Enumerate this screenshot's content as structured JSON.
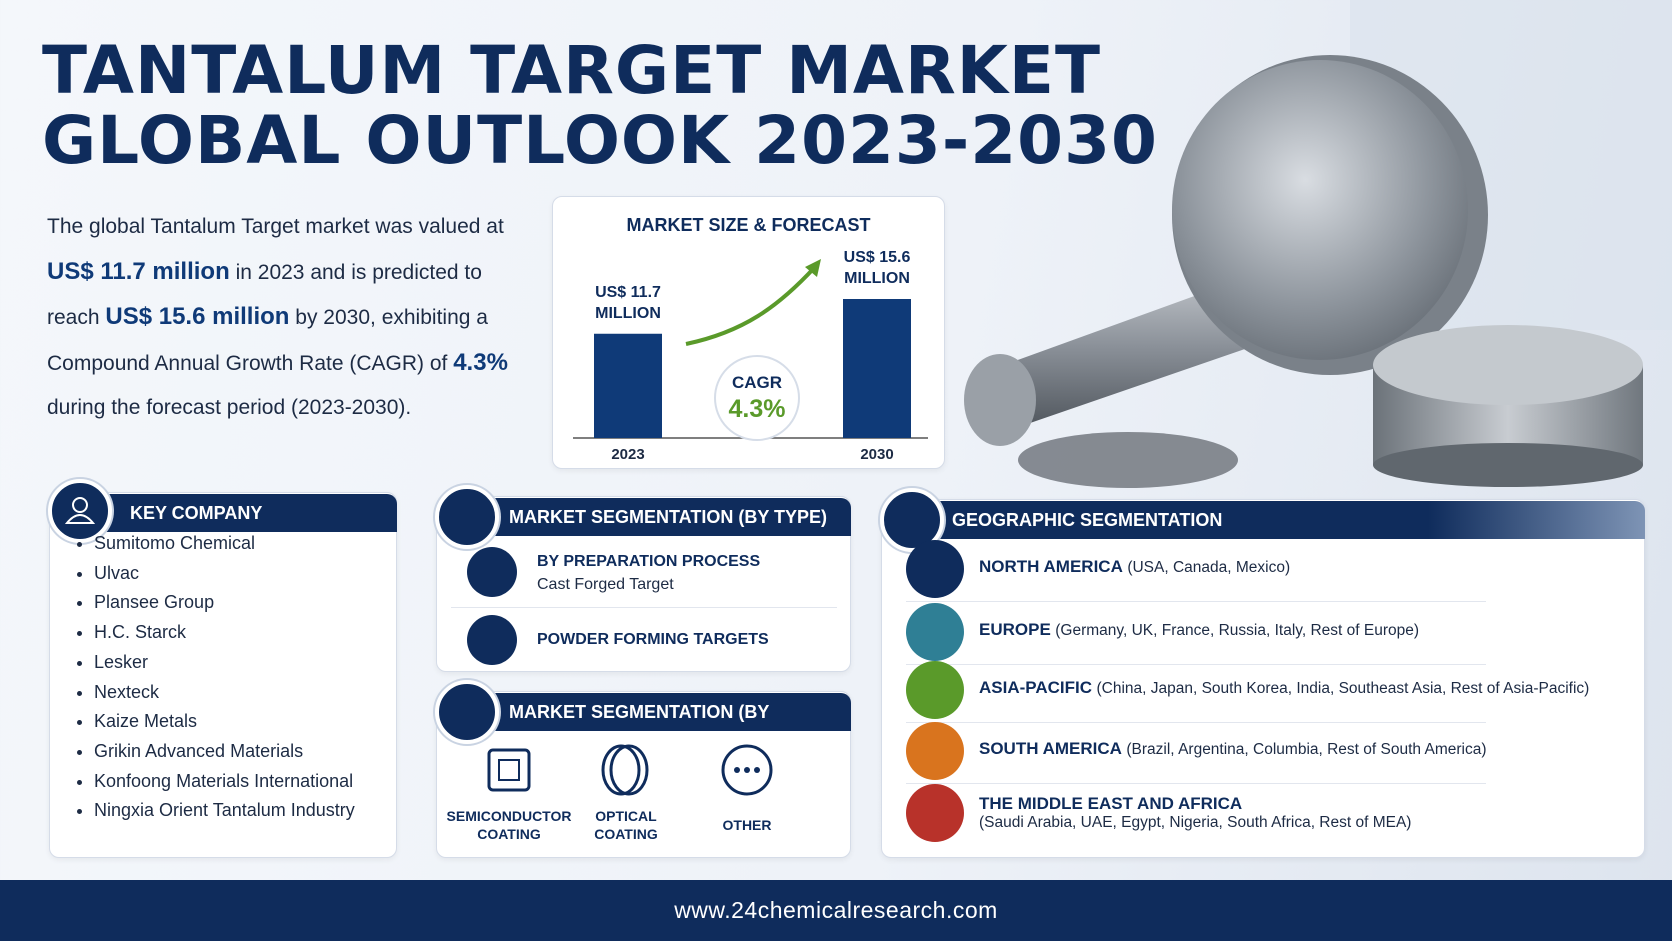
{
  "header": {
    "title_line1": "TANTALUM TARGET MARKET",
    "title_line2": "GLOBAL OUTLOOK 2023-2030"
  },
  "intro": [
    "The global Tantalum Target market was valued at",
    "US$ 11.7 million",
    "in 2023 and is predicted to reach",
    "US$ 15.6 million",
    "by 2030, exhibiting a",
    "Compound Annual Growth Rate (CAGR) of",
    "4.3%",
    "during the forecast period (2023-2030)."
  ],
  "chart_data": {
    "type": "bar",
    "title": "MARKET SIZE & FORECAST",
    "categories": [
      "2023",
      "2030"
    ],
    "values": [
      11.7,
      15.6
    ],
    "value_labels": [
      "US$ 11.7 MILLION",
      "US$ 15.6 MILLION"
    ],
    "color": "#0f3a78",
    "annotations": [
      "CAGR",
      "4.3%"
    ]
  },
  "key_company": {
    "title": "KEY COMPANY",
    "items": [
      "Sumitomo Chemical",
      "Ulvac",
      "Plansee Group",
      "H.C. Starck",
      "Lesker",
      "Nexteck",
      "Kaize Metals",
      "Grikin Advanced Materials",
      "Konfoong Materials International",
      "Ningxia Orient Tantalum Industry"
    ]
  },
  "type_segmentation": {
    "title": "MARKET SEGMENTATION (BY TYPE)",
    "items": [
      {
        "name": "BY PREPARATION PROCESS",
        "detail": "Cast Forged Target"
      },
      {
        "name": "POWDER FORMING TARGETS"
      }
    ]
  },
  "application_segmentation": {
    "title": "MARKET SEGMENTATION (BY APPLICATION)",
    "items": [
      "SEMICONDUCTOR COATING",
      "OPTICAL COATING",
      "OTHER"
    ]
  },
  "geographic_segmentation": {
    "title": "GEOGRAPHIC SEGMENTATION",
    "regions": [
      {
        "name": "NORTH AMERICA",
        "countries": "(USA, Canada, Mexico)"
      },
      {
        "name": "EUROPE",
        "countries": "(Germany, UK, France, Russia, Italy, Rest of Europe)"
      },
      {
        "name": "ASIA-PACIFIC",
        "countries": "(China, Japan, South Korea, India, Southeast Asia, Rest of Asia-Pacific)"
      },
      {
        "name": "SOUTH AMERICA",
        "countries": "(Brazil, Argentina, Columbia, Rest of South America)"
      },
      {
        "name": "THE MIDDLE EAST AND AFRICA",
        "countries": "(Saudi Arabia, UAE, Egypt, Nigeria, South Africa, Rest of MEA)"
      }
    ]
  },
  "footer": {
    "url": "www.24chemicalresearch.com"
  }
}
